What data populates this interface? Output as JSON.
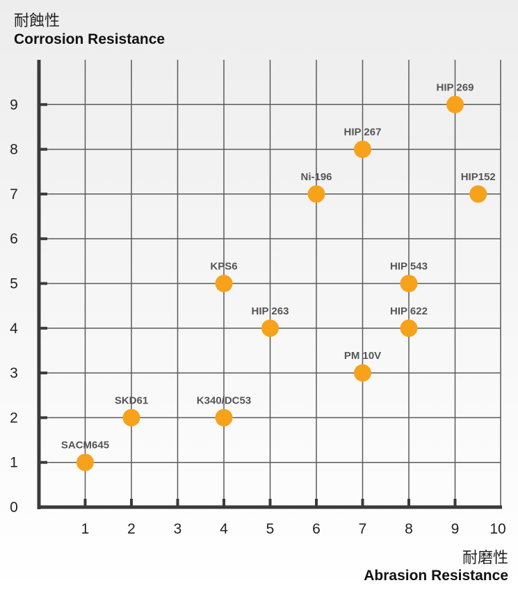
{
  "y_axis": {
    "label_zh": "耐蝕性",
    "label_en": "Corrosion Resistance"
  },
  "x_axis": {
    "label_zh": "耐磨性",
    "label_en": "Abrasion Resistance"
  },
  "colors": {
    "point": "#f7a21b",
    "grid": "#5a5a5a",
    "axis": "#3a3a3a"
  },
  "chart_data": {
    "type": "scatter",
    "xlim": [
      0,
      10
    ],
    "ylim": [
      0,
      10
    ],
    "x_ticks": [
      1,
      2,
      3,
      4,
      5,
      6,
      7,
      8,
      9,
      10
    ],
    "y_ticks": [
      0,
      1,
      2,
      3,
      4,
      5,
      6,
      7,
      8,
      9
    ],
    "grid": true,
    "points": [
      {
        "label": "SACM645",
        "x": 1,
        "y": 1
      },
      {
        "label": "SKD61",
        "x": 2,
        "y": 2
      },
      {
        "label": "K340/DC53",
        "x": 4,
        "y": 2
      },
      {
        "label": "KPS6",
        "x": 4,
        "y": 5
      },
      {
        "label": "HIP 263",
        "x": 5,
        "y": 4
      },
      {
        "label": "Ni-196",
        "x": 6,
        "y": 7
      },
      {
        "label": "HIP 267",
        "x": 7,
        "y": 8
      },
      {
        "label": "PM 10V",
        "x": 7,
        "y": 3
      },
      {
        "label": "HIP 543",
        "x": 8,
        "y": 5
      },
      {
        "label": "HIP 622",
        "x": 8,
        "y": 4
      },
      {
        "label": "HIP 269",
        "x": 9,
        "y": 9
      },
      {
        "label": "HIP152",
        "x": 9.5,
        "y": 7
      }
    ]
  }
}
